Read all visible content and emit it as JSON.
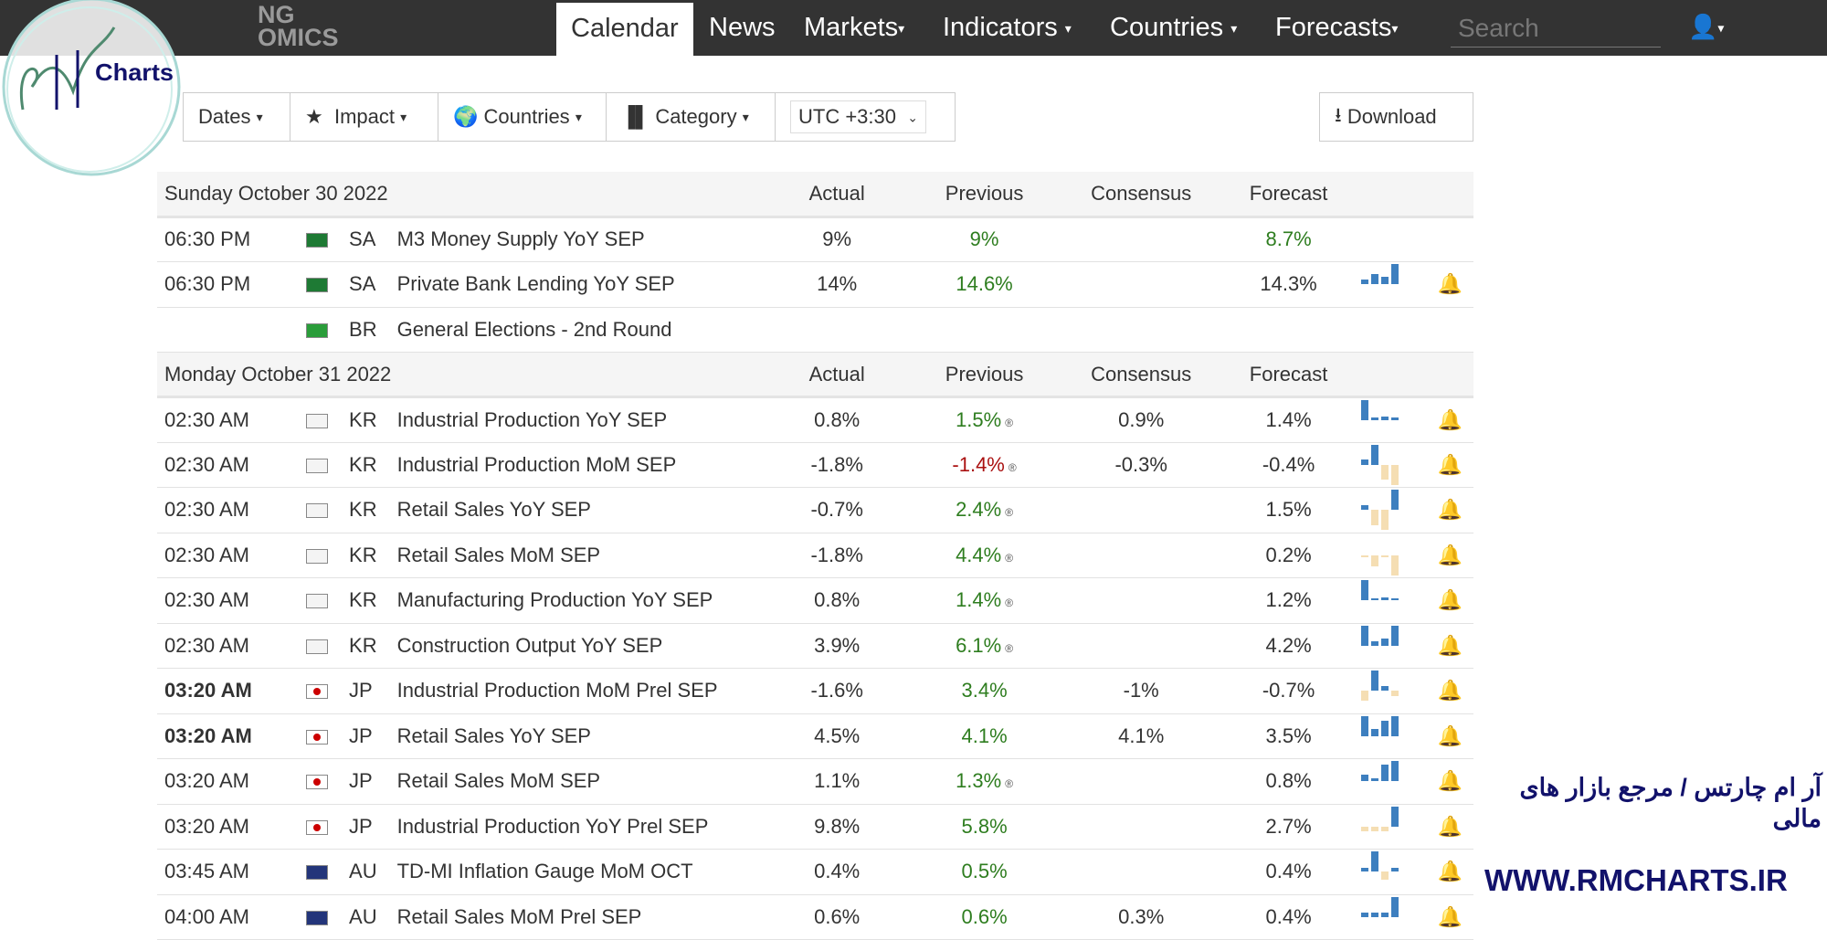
{
  "nav": {
    "brand_line1": "NG",
    "brand_line2": "OMICS",
    "items": [
      "Calendar",
      "News",
      "Markets",
      "Indicators",
      "Countries",
      "Forecasts"
    ],
    "search_placeholder": "Search"
  },
  "toolbar": {
    "dates": "Dates",
    "impact": "Impact",
    "countries": "Countries",
    "category": "Category",
    "timezone": "UTC +3:30",
    "download": "Download"
  },
  "columns": {
    "actual": "Actual",
    "previous": "Previous",
    "consensus": "Consensus",
    "forecast": "Forecast"
  },
  "days": [
    {
      "title": "Sunday October 30 2022",
      "rows": [
        {
          "time": "06:30 PM",
          "country": "SA",
          "event": "M3 Money Supply YoY SEP",
          "actual": "9%",
          "previous": "9%",
          "prev_color": "green",
          "revised": false,
          "consensus": "",
          "forecast": "8.7%",
          "fc_color": "green",
          "spark": [],
          "bold": false
        },
        {
          "time": "06:30 PM",
          "country": "SA",
          "event": "Private Bank Lending YoY SEP",
          "actual": "14%",
          "previous": "14.6%",
          "prev_color": "green",
          "revised": false,
          "consensus": "",
          "forecast": "14.3%",
          "spark": [
            2,
            4,
            3,
            8
          ],
          "bold": false
        },
        {
          "time": "",
          "country": "BR",
          "event": "General Elections - 2nd Round",
          "actual": "",
          "previous": "",
          "consensus": "",
          "forecast": "",
          "spark": [],
          "nobell": true
        }
      ]
    },
    {
      "title": "Monday October 31 2022",
      "rows": [
        {
          "time": "02:30 AM",
          "country": "KR",
          "event": "Industrial Production YoY SEP",
          "actual": "0.8%",
          "previous": "1.5%",
          "prev_color": "green",
          "revised": true,
          "consensus": "0.9%",
          "forecast": "1.4%",
          "spark": [
            9,
            1,
            1.5,
            1
          ]
        },
        {
          "time": "02:30 AM",
          "country": "KR",
          "event": "Industrial Production MoM SEP",
          "actual": "-1.8%",
          "previous": "-1.4%",
          "prev_color": "red",
          "revised": true,
          "consensus": "-0.3%",
          "forecast": "-0.4%",
          "spark": [
            1,
            4,
            -3,
            -4
          ]
        },
        {
          "time": "02:30 AM",
          "country": "KR",
          "event": "Retail Sales YoY SEP",
          "actual": "-0.7%",
          "previous": "2.4%",
          "prev_color": "green",
          "revised": true,
          "consensus": "",
          "forecast": "1.5%",
          "spark": [
            1,
            -3,
            -4,
            4
          ]
        },
        {
          "time": "02:30 AM",
          "country": "KR",
          "event": "Retail Sales MoM SEP",
          "actual": "-1.8%",
          "previous": "4.4%",
          "prev_color": "green",
          "revised": true,
          "consensus": "",
          "forecast": "0.2%",
          "spark": [
            -0.2,
            -5,
            -0.5,
            -9
          ]
        },
        {
          "time": "02:30 AM",
          "country": "KR",
          "event": "Manufacturing Production YoY SEP",
          "actual": "0.8%",
          "previous": "1.4%",
          "prev_color": "green",
          "revised": true,
          "consensus": "",
          "forecast": "1.2%",
          "spark": [
            9,
            1,
            1.5,
            0.5
          ]
        },
        {
          "time": "02:30 AM",
          "country": "KR",
          "event": "Construction Output YoY SEP",
          "actual": "3.9%",
          "previous": "6.1%",
          "prev_color": "green",
          "revised": true,
          "consensus": "",
          "forecast": "4.2%",
          "spark": [
            9,
            2,
            3,
            9
          ]
        },
        {
          "time": "03:20 AM",
          "country": "JP",
          "event": "Industrial Production MoM Prel SEP",
          "actual": "-1.6%",
          "previous": "3.4%",
          "prev_color": "green",
          "revised": false,
          "consensus": "-1%",
          "forecast": "-0.7%",
          "spark": [
            -2,
            4,
            1,
            -1
          ],
          "bold": true
        },
        {
          "time": "03:20 AM",
          "country": "JP",
          "event": "Retail Sales YoY SEP",
          "actual": "4.5%",
          "previous": "4.1%",
          "prev_color": "green",
          "revised": false,
          "consensus": "4.1%",
          "forecast": "3.5%",
          "spark": [
            8,
            3,
            6,
            8
          ],
          "bold": true
        },
        {
          "time": "03:20 AM",
          "country": "JP",
          "event": "Retail Sales MoM SEP",
          "actual": "1.1%",
          "previous": "1.3%",
          "prev_color": "green",
          "revised": true,
          "consensus": "",
          "forecast": "0.8%",
          "spark": [
            2,
            1,
            5,
            6
          ]
        },
        {
          "time": "03:20 AM",
          "country": "JP",
          "event": "Industrial Production YoY Prel SEP",
          "actual": "9.8%",
          "previous": "5.8%",
          "prev_color": "green",
          "revised": false,
          "consensus": "",
          "forecast": "2.7%",
          "spark": [
            -2,
            -2,
            -2,
            9
          ]
        },
        {
          "time": "03:45 AM",
          "country": "AU",
          "event": "TD-MI Inflation Gauge MoM OCT",
          "actual": "0.4%",
          "previous": "0.5%",
          "prev_color": "green",
          "revised": false,
          "consensus": "",
          "forecast": "0.4%",
          "spark": [
            1,
            5,
            -2,
            1
          ]
        },
        {
          "time": "04:00 AM",
          "country": "AU",
          "event": "Retail Sales MoM Prel SEP",
          "actual": "0.6%",
          "previous": "0.6%",
          "prev_color": "green",
          "revised": false,
          "consensus": "0.3%",
          "forecast": "0.4%",
          "spark": [
            2,
            2,
            2,
            9
          ]
        }
      ]
    }
  ],
  "colors": {
    "up": "#3d7fbf",
    "down": "#f5deb3",
    "nav": "#333333"
  },
  "watermark": {
    "logo": "RM Charts",
    "persian": "آر ام چارتس / مرجع بازار های مالی",
    "url": "WWW.RMCHARTS.IR"
  }
}
